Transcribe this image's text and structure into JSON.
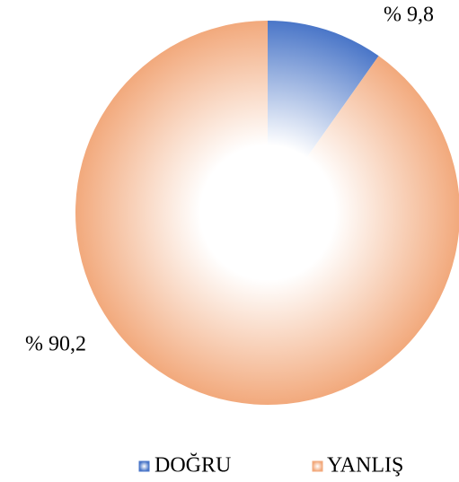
{
  "chart_data": {
    "type": "pie",
    "categories": [
      "DOĞRU",
      "YANLIŞ"
    ],
    "values": [
      9.8,
      90.2
    ],
    "value_labels": [
      "% 9,8",
      "% 90,2"
    ],
    "colors": [
      "#4a76c8",
      "#f2a97c"
    ],
    "legend": "bottom"
  }
}
